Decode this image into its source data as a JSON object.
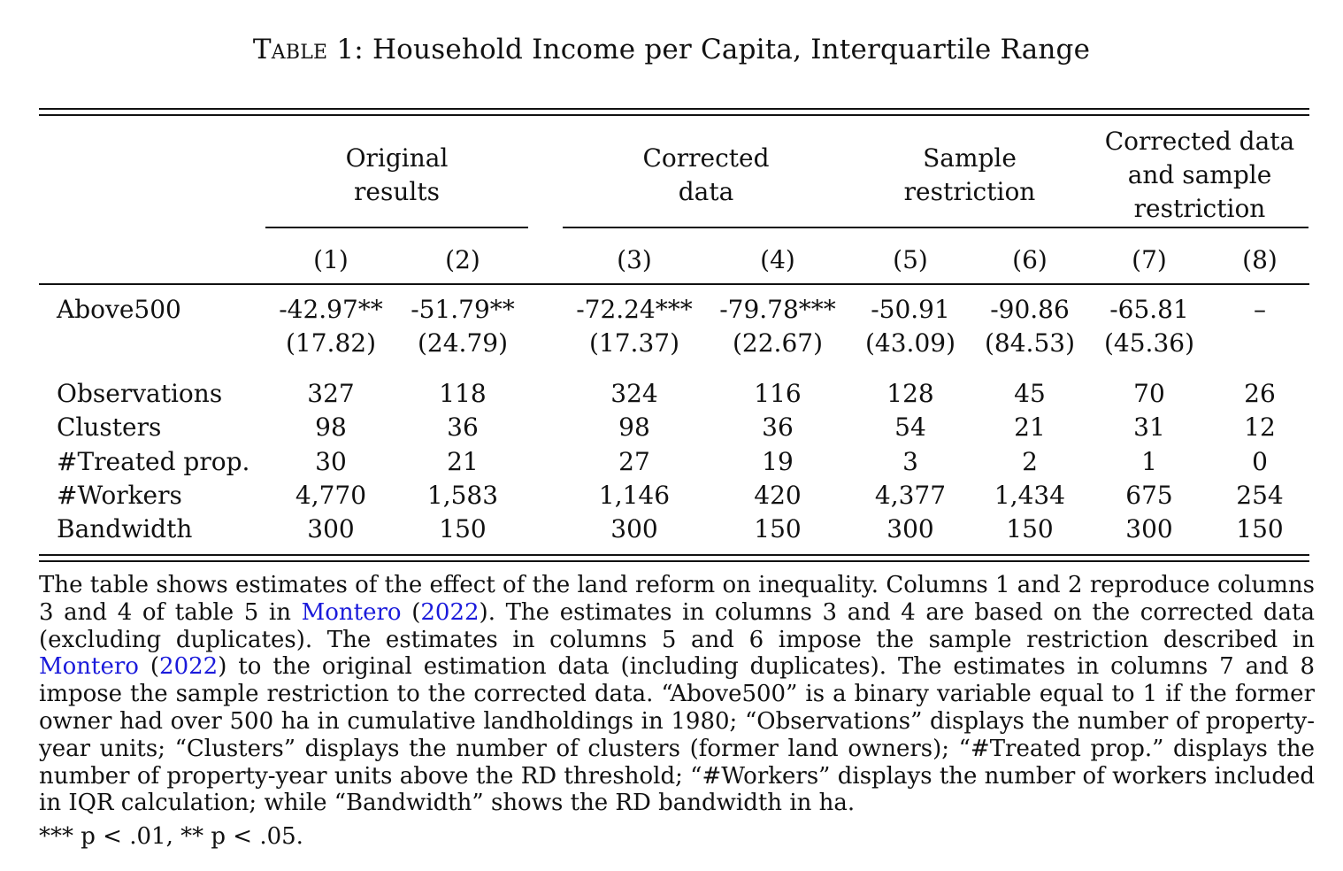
{
  "caption": {
    "label": "Table 1:",
    "title": "Household Income per Capita, Interquartile Range"
  },
  "groups": [
    {
      "lines": [
        "Original",
        "results"
      ]
    },
    {
      "lines": [
        "Corrected",
        "data"
      ]
    },
    {
      "lines": [
        "Sample",
        "restriction"
      ]
    },
    {
      "lines": [
        "Corrected data",
        "and sample",
        "restriction"
      ]
    }
  ],
  "column_headers": [
    "(1)",
    "(2)",
    "(3)",
    "(4)",
    "(5)",
    "(6)",
    "(7)",
    "(8)"
  ],
  "coef_row": {
    "label": "Above500",
    "estimates": [
      "-42.97**",
      "-51.79**",
      "-72.24***",
      "-79.78***",
      "-50.91",
      "-90.86",
      "-65.81",
      "–"
    ],
    "std_errors": [
      "(17.82)",
      "(24.79)",
      "(17.37)",
      "(22.67)",
      "(43.09)",
      "(84.53)",
      "(45.36)",
      ""
    ]
  },
  "stat_rows": [
    {
      "label": "Observations",
      "values": [
        "327",
        "118",
        "324",
        "116",
        "128",
        "45",
        "70",
        "26"
      ]
    },
    {
      "label": "Clusters",
      "values": [
        "98",
        "36",
        "98",
        "36",
        "54",
        "21",
        "31",
        "12"
      ]
    },
    {
      "label": "#Treated prop.",
      "values": [
        "30",
        "21",
        "27",
        "19",
        "3",
        "2",
        "1",
        "0"
      ]
    },
    {
      "label": "#Workers",
      "values": [
        "4,770",
        "1,583",
        "1,146",
        "420",
        "4,377",
        "1,434",
        "675",
        "254"
      ]
    },
    {
      "label": "Bandwidth",
      "values": [
        "300",
        "150",
        "300",
        "150",
        "300",
        "150",
        "300",
        "150"
      ]
    }
  ],
  "note": {
    "p1": "The table shows estimates of the effect of the land reform on inequality. Columns 1 and 2 reproduce columns 3 and 4 of table 5 in ",
    "cite_author": "Montero",
    "cite_year": "2022",
    "p2": ". The estimates in columns 3 and 4 are based on the corrected data (excluding duplicates). The estimates in columns 5 and 6 impose the sample restriction described in ",
    "p3": " to the original estimation data (including duplicates). The estimates in columns 7 and 8 impose the sample restriction to the corrected data. “Above500” is a binary variable equal to 1 if the former owner had over 500 ha in cumulative landholdings in 1980; “Observations” displays the number of property-year units; “Clusters” displays the number of clusters (former land owners); “#Treated prop.” displays the number of property-year units above the RD threshold; “#Workers” displays the number of workers included in IQR calculation; while “Bandwidth” shows the RD bandwidth in ha.",
    "significance": "*** p < .01, ** p < .05."
  },
  "colors": {
    "text": "#111111",
    "link": "#1a1adb"
  }
}
